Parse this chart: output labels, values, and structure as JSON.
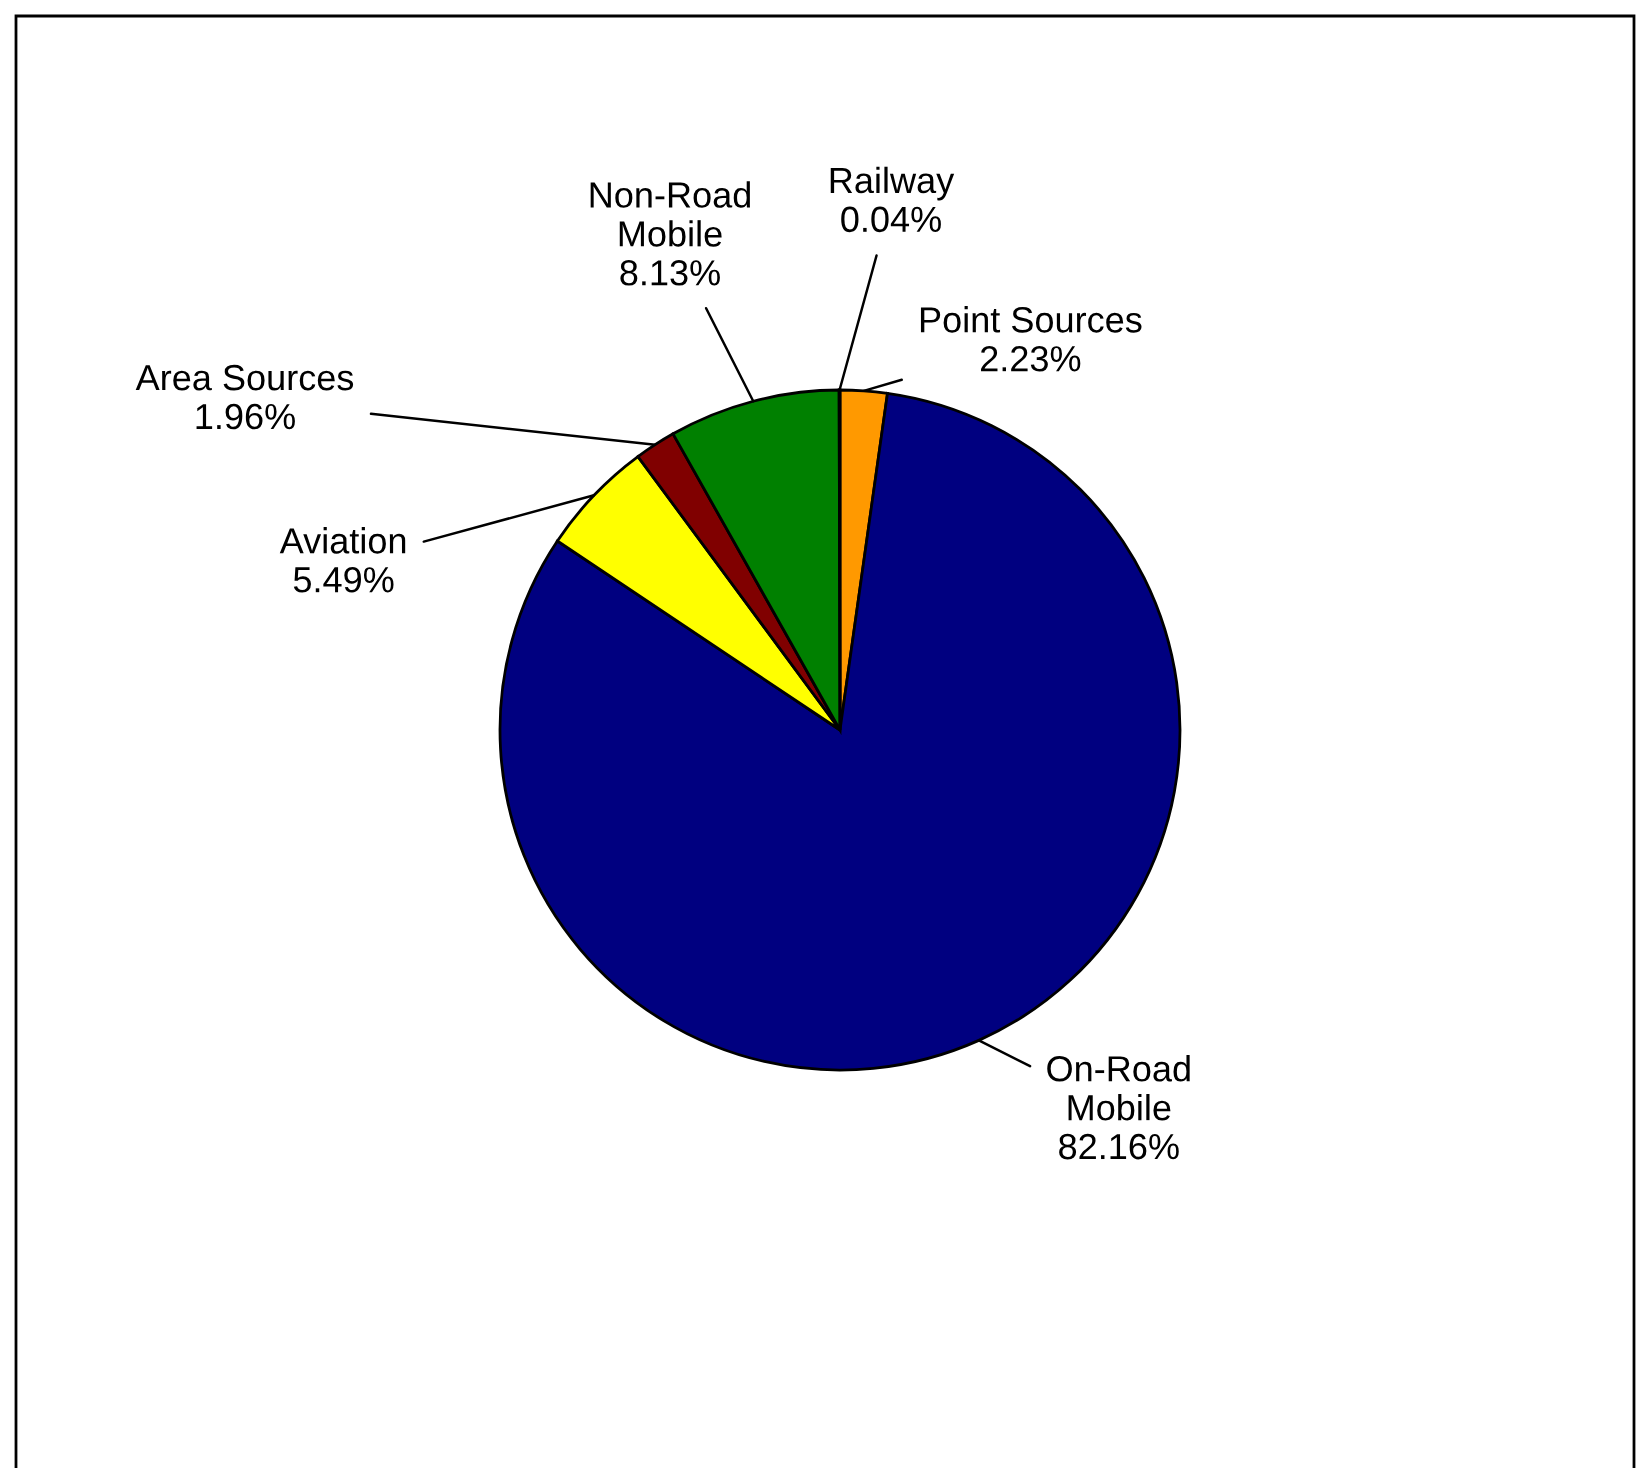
{
  "chart_data": {
    "type": "pie",
    "categories": [
      "Point Sources",
      "On-Road Mobile",
      "Aviation",
      "Area Sources",
      "Non-Road Mobile",
      "Railway"
    ],
    "values": [
      2.23,
      82.16,
      5.49,
      1.96,
      8.13,
      0.04
    ],
    "colors": [
      "#ff9900",
      "#000080",
      "#ffff00",
      "#800000",
      "#008000",
      "#00ffff"
    ],
    "value_labels": [
      "2.23%",
      "82.16%",
      "5.49%",
      "1.96%",
      "8.13%",
      "0.04%"
    ],
    "legend": false
  }
}
